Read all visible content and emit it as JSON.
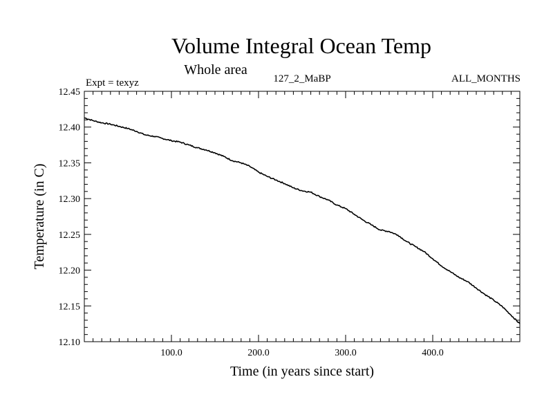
{
  "chart_data": {
    "type": "line",
    "title": "Volume Integral Ocean Temp",
    "subtitle": "Whole area",
    "annotations": {
      "left": "Expt = texyz",
      "center": "127_2_MaBP",
      "right": "ALL_MONTHS"
    },
    "xlabel": "Time (in years since start)",
    "ylabel": "Temperature (in C)",
    "xlim": [
      0,
      500
    ],
    "ylim": [
      12.1,
      12.45
    ],
    "x_tick_labels": [
      "100.0",
      "200.0",
      "300.0",
      "400.0"
    ],
    "x_tick_values": [
      100,
      200,
      300,
      400
    ],
    "y_tick_labels": [
      "12.10",
      "12.15",
      "12.20",
      "12.25",
      "12.30",
      "12.35",
      "12.40",
      "12.45"
    ],
    "y_tick_values": [
      12.1,
      12.15,
      12.2,
      12.25,
      12.3,
      12.35,
      12.4,
      12.45
    ],
    "grid": false,
    "series": [
      {
        "color": "#000000",
        "x": [
          0,
          10,
          20,
          30,
          40,
          50,
          60,
          70,
          80,
          90,
          100,
          110,
          120,
          130,
          140,
          150,
          160,
          170,
          180,
          190,
          200,
          210,
          220,
          230,
          240,
          250,
          260,
          270,
          280,
          290,
          300,
          310,
          320,
          330,
          340,
          350,
          360,
          370,
          380,
          390,
          400,
          410,
          420,
          430,
          440,
          450,
          460,
          470,
          480,
          490,
          500
        ],
        "y": [
          12.413,
          12.409,
          12.406,
          12.404,
          12.401,
          12.398,
          12.394,
          12.389,
          12.387,
          12.384,
          12.381,
          12.379,
          12.375,
          12.371,
          12.368,
          12.364,
          12.359,
          12.353,
          12.35,
          12.345,
          12.337,
          12.331,
          12.326,
          12.321,
          12.315,
          12.311,
          12.309,
          12.303,
          12.298,
          12.291,
          12.286,
          12.278,
          12.27,
          12.263,
          12.256,
          12.254,
          12.249,
          12.24,
          12.233,
          12.226,
          12.216,
          12.206,
          12.198,
          12.19,
          12.184,
          12.175,
          12.166,
          12.158,
          12.149,
          12.137,
          12.125
        ]
      }
    ]
  }
}
